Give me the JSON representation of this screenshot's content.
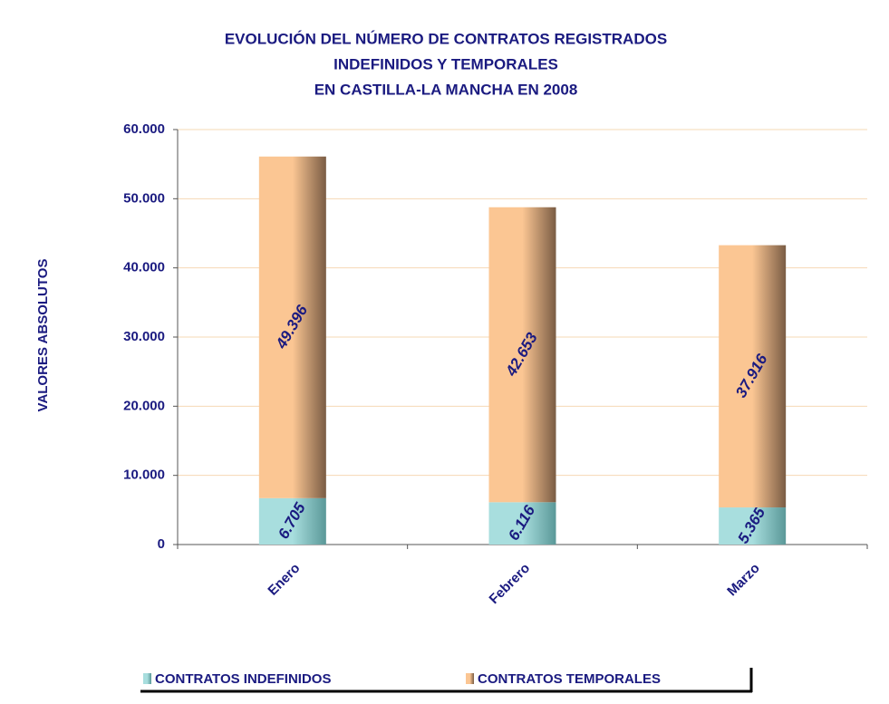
{
  "chart_data": {
    "type": "stacked_bar",
    "title": [
      "EVOLUCIÓN DEL NÚMERO DE CONTRATOS REGISTRADOS",
      "INDEFINIDOS Y TEMPORALES",
      "EN CASTILLA-LA MANCHA EN 2008"
    ],
    "y_label": "VALORES ABSOLUTOS",
    "categories": [
      "Enero",
      "Febrero",
      "Marzo"
    ],
    "series": [
      {
        "name": "CONTRATOS INDEFINIDOS",
        "color": "#a8dede",
        "values": [
          6705,
          6116,
          5365
        ],
        "value_labels": [
          "6.705",
          "6.116",
          "5.365"
        ]
      },
      {
        "name": "CONTRATOS TEMPORALES",
        "color": "#fbc693",
        "values": [
          49396,
          42653,
          37916
        ],
        "value_labels": [
          "49.396",
          "42.653",
          "37.916"
        ]
      }
    ],
    "ylim": [
      0,
      60000
    ],
    "yticks": [
      0,
      {
        "value": 10000,
        "label": "10.000"
      },
      {
        "value": 20000,
        "label": "20.000"
      },
      {
        "value": 30000,
        "label": "30.000"
      },
      {
        "value": 40000,
        "label": "40.000"
      },
      {
        "value": 50000,
        "label": "50.000"
      },
      {
        "value": 60000,
        "label": "60.000"
      }
    ],
    "grid": true
  }
}
